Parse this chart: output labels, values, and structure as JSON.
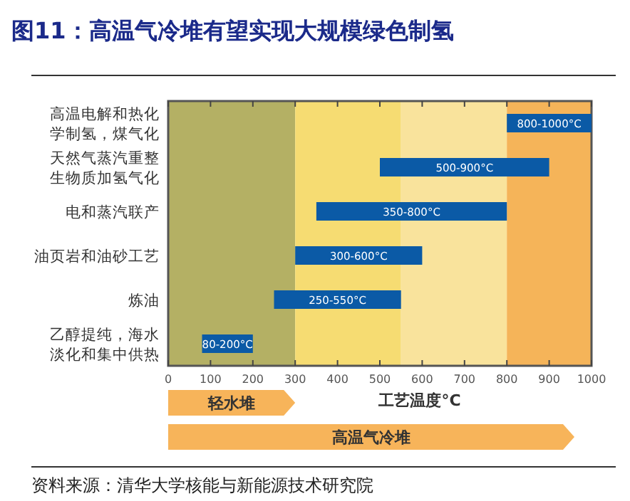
{
  "chart_data": {
    "type": "bar",
    "orientation": "horizontal",
    "title": "图11：高温气冷堆有望实现大规模绿色制氢",
    "xlabel": "工艺温度°C",
    "categories": [
      "高温电解和热化学制氢，煤气化",
      "天然气蒸汽重整生物质加氢气化",
      "电和蒸汽联产",
      "油页岩和油砂工艺",
      "炼油",
      "乙醇提纯，海水淡化和集中供热"
    ],
    "base": [
      800,
      500,
      350,
      300,
      250,
      80
    ],
    "values": [
      200,
      400,
      450,
      300,
      300,
      120
    ],
    "value_labels": [
      "800-1000°C",
      "500-900°C",
      "350-800°C",
      "300-600°C",
      "250-550°C",
      "80-200°C"
    ],
    "color": "#0b5aa6",
    "xlim": [
      0,
      1000
    ],
    "xticks": [
      0,
      100,
      200,
      300,
      400,
      500,
      600,
      700,
      800,
      900,
      1000
    ],
    "bands": [
      {
        "axis": "x",
        "from": 0,
        "to": 300,
        "color": "#b4b064"
      },
      {
        "axis": "x",
        "from": 300,
        "to": 550,
        "color": "#f6dc72"
      },
      {
        "axis": "x",
        "from": 550,
        "to": 800,
        "color": "#f9e39c"
      },
      {
        "axis": "x",
        "from": 800,
        "to": 1000,
        "color": "#f5b459"
      }
    ],
    "annotations": [
      "轻水堆",
      "高温气冷堆",
      "资料来源：清华大学核能与新能源技术研究院"
    ]
  }
}
